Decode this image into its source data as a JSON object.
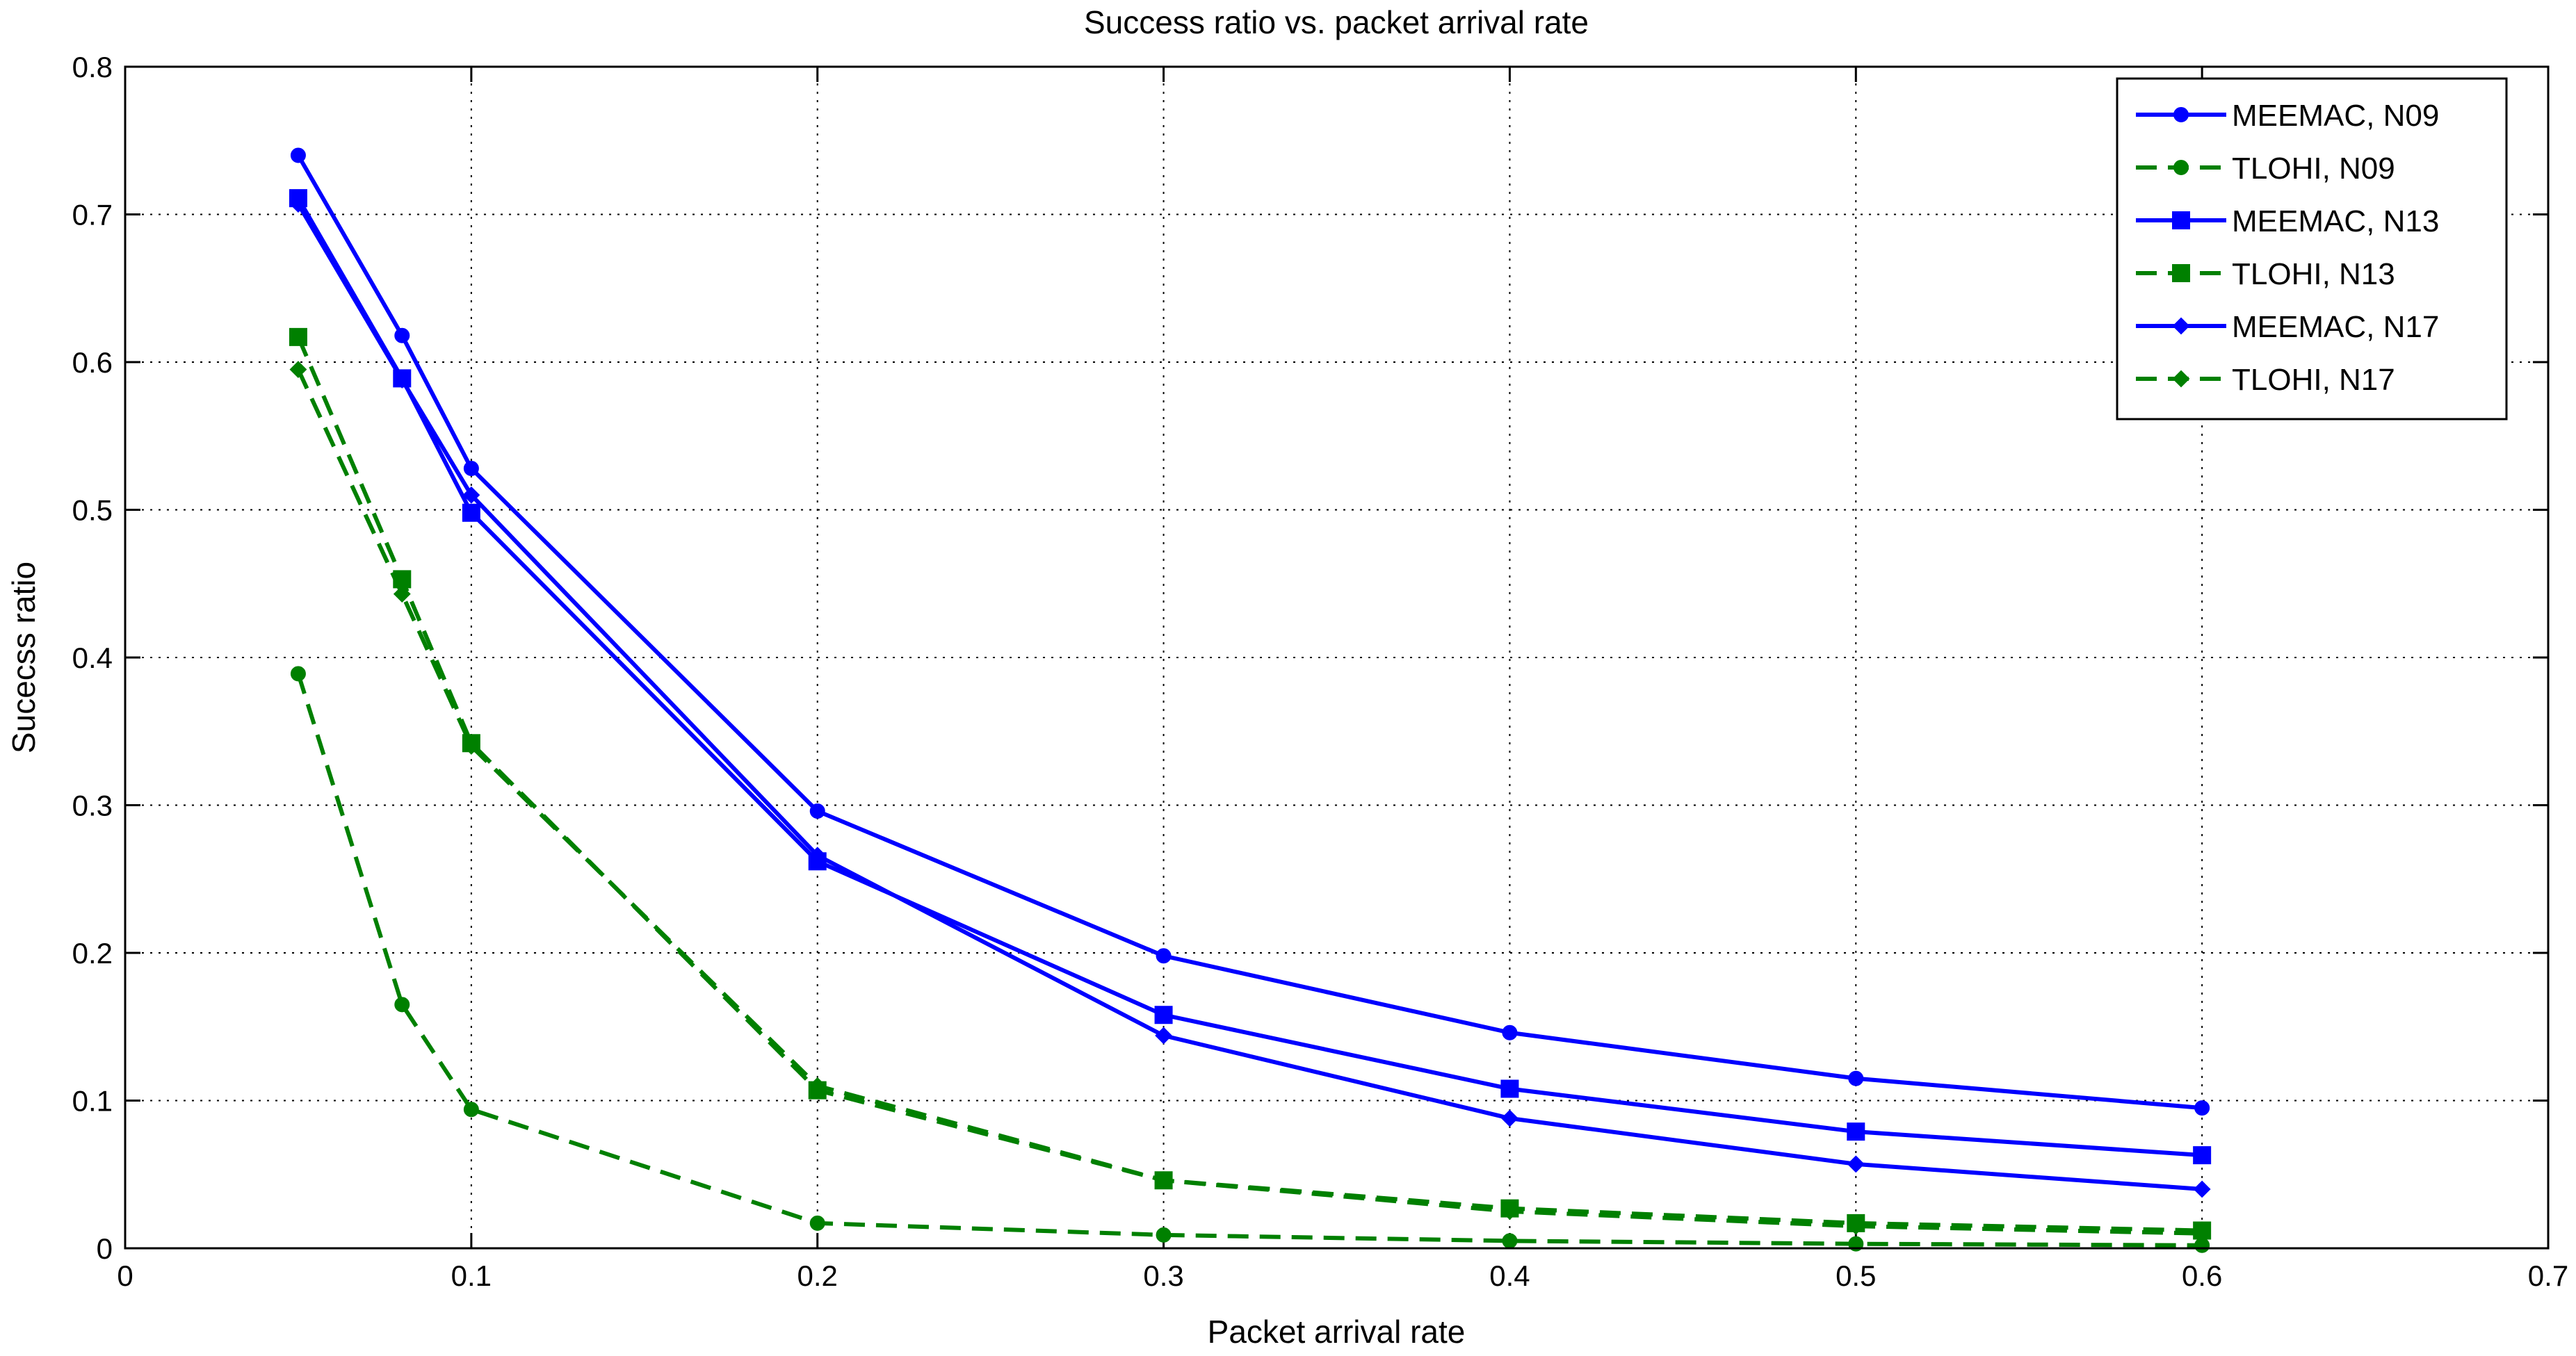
{
  "chart_data": {
    "type": "line",
    "title": "Success ratio vs. packet arrival rate",
    "xlabel": "Packet arrival rate",
    "ylabel": "Sucecss ratio",
    "xlim": [
      0,
      0.7
    ],
    "ylim": [
      0,
      0.8
    ],
    "xticks": [
      "0",
      "0.1",
      "0.2",
      "0.3",
      "0.4",
      "0.5",
      "0.6",
      "0.7"
    ],
    "yticks": [
      "0",
      "0.1",
      "0.2",
      "0.3",
      "0.4",
      "0.5",
      "0.6",
      "0.7",
      "0.8"
    ],
    "grid": true,
    "legend_position": "top-right",
    "x": [
      0.05,
      0.08,
      0.1,
      0.2,
      0.3,
      0.4,
      0.5,
      0.6
    ],
    "series": [
      {
        "name": "MEEMAC, N09",
        "color": "#0000ff",
        "dash": "solid",
        "marker": "circle",
        "values": [
          0.74,
          0.618,
          0.528,
          0.296,
          0.198,
          0.146,
          0.115,
          0.095
        ]
      },
      {
        "name": "TLOHI, N09",
        "color": "#008000",
        "dash": "dashed",
        "marker": "circle",
        "values": [
          0.389,
          0.165,
          0.094,
          0.017,
          0.009,
          0.005,
          0.003,
          0.002
        ]
      },
      {
        "name": "MEEMAC, N13",
        "color": "#0000ff",
        "dash": "solid",
        "marker": "square",
        "values": [
          0.711,
          0.589,
          0.498,
          0.262,
          0.158,
          0.108,
          0.079,
          0.063
        ]
      },
      {
        "name": "TLOHI, N13",
        "color": "#008000",
        "dash": "dashed",
        "marker": "square",
        "values": [
          0.617,
          0.453,
          0.342,
          0.107,
          0.046,
          0.027,
          0.017,
          0.012
        ]
      },
      {
        "name": "MEEMAC, N17",
        "color": "#0000ff",
        "dash": "solid",
        "marker": "diamond",
        "values": [
          0.707,
          0.588,
          0.51,
          0.266,
          0.144,
          0.088,
          0.057,
          0.04
        ]
      },
      {
        "name": "TLOHI, N17",
        "color": "#008000",
        "dash": "dashed",
        "marker": "diamond",
        "values": [
          0.595,
          0.443,
          0.34,
          0.11,
          0.046,
          0.025,
          0.015,
          0.01
        ]
      }
    ]
  }
}
